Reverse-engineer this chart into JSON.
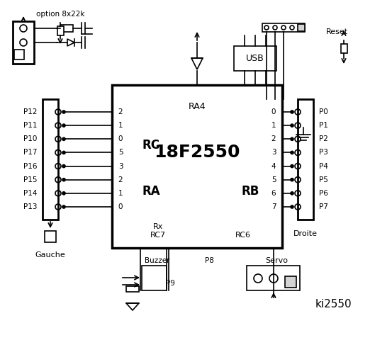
{
  "title": "ki2550",
  "bg_color": "#ffffff",
  "line_color": "#000000",
  "chip_label": "18F2550",
  "chip_sublabel": "RA4",
  "rc_label": "RC",
  "ra_label": "RA",
  "rb_label": "RB",
  "rc_pins": [
    "2",
    "1",
    "0"
  ],
  "ra_pins": [
    "5",
    "3",
    "2",
    "1",
    "0"
  ],
  "rb_pins": [
    "0",
    "1",
    "2",
    "3",
    "4",
    "5",
    "6",
    "7"
  ],
  "left_labels": [
    "P12",
    "P11",
    "P10",
    "P17",
    "P16",
    "P15",
    "P14",
    "P13"
  ],
  "right_labels": [
    "P0",
    "P1",
    "P2",
    "P3",
    "P4",
    "P5",
    "P6",
    "P7"
  ],
  "bottom_labels": [
    "Buzzer",
    "P9",
    "P8",
    "Servo"
  ],
  "group_labels": [
    "Gauche",
    "Droite"
  ],
  "option_label": "option 8x22k",
  "usb_label": "USB",
  "reset_label": "Reset",
  "rx_label": "Rx",
  "rc7_label": "RC7",
  "rc6_label": "RC6"
}
